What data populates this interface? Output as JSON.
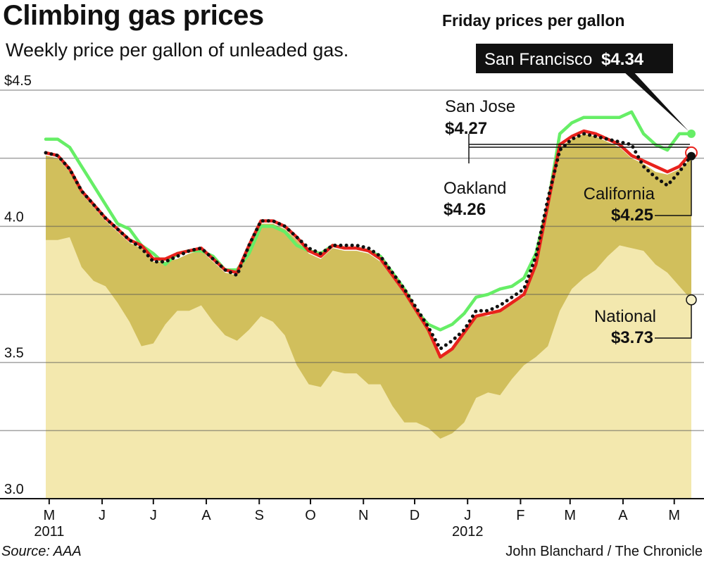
{
  "header": {
    "title": "Climbing gas prices",
    "subtitle": "Weekly price per gallon of unleaded gas.",
    "right_heading": "Friday prices per gallon"
  },
  "footer": {
    "source": "Source: AAA",
    "credit": "John Blanchard / The Chronicle"
  },
  "chart_data": {
    "type": "line",
    "title": "Climbing gas prices",
    "subtitle": "Weekly price per gallon of unleaded gas.",
    "xlabel": "",
    "ylabel": "",
    "ylim": [
      3.0,
      4.5
    ],
    "y_ticks": [
      {
        "value": 4.5,
        "label": "$4.5"
      },
      {
        "value": 4.0,
        "label": "4.0"
      },
      {
        "value": 3.5,
        "label": "3.5"
      },
      {
        "value": 3.0,
        "label": "3.0"
      }
    ],
    "gridlines": [
      3.25,
      3.5,
      3.75,
      4.0,
      4.25,
      4.5
    ],
    "grid": true,
    "x_ticks": [
      {
        "date": "2011-05-01",
        "label": "M",
        "year": "2011"
      },
      {
        "date": "2011-06-01",
        "label": "J"
      },
      {
        "date": "2011-07-01",
        "label": "J"
      },
      {
        "date": "2011-08-01",
        "label": "A"
      },
      {
        "date": "2011-09-01",
        "label": "S"
      },
      {
        "date": "2011-10-01",
        "label": "O"
      },
      {
        "date": "2011-11-01",
        "label": "N"
      },
      {
        "date": "2011-12-01",
        "label": "D"
      },
      {
        "date": "2012-01-01",
        "label": "J",
        "year": "2012"
      },
      {
        "date": "2012-02-01",
        "label": "F"
      },
      {
        "date": "2012-03-01",
        "label": "M"
      },
      {
        "date": "2012-04-01",
        "label": "A"
      },
      {
        "date": "2012-05-01",
        "label": "M"
      }
    ],
    "x": [
      "2011-04-29",
      "2011-05-06",
      "2011-05-13",
      "2011-05-20",
      "2011-05-27",
      "2011-06-03",
      "2011-06-10",
      "2011-06-17",
      "2011-06-24",
      "2011-07-01",
      "2011-07-08",
      "2011-07-15",
      "2011-07-22",
      "2011-07-29",
      "2011-08-05",
      "2011-08-12",
      "2011-08-19",
      "2011-08-26",
      "2011-09-02",
      "2011-09-09",
      "2011-09-16",
      "2011-09-23",
      "2011-09-30",
      "2011-10-07",
      "2011-10-14",
      "2011-10-21",
      "2011-10-28",
      "2011-11-04",
      "2011-11-11",
      "2011-11-18",
      "2011-11-25",
      "2011-12-02",
      "2011-12-09",
      "2011-12-16",
      "2011-12-23",
      "2011-12-30",
      "2012-01-06",
      "2012-01-13",
      "2012-01-20",
      "2012-01-27",
      "2012-02-03",
      "2012-02-10",
      "2012-02-17",
      "2012-02-24",
      "2012-03-02",
      "2012-03-09",
      "2012-03-16",
      "2012-03-23",
      "2012-03-30",
      "2012-04-06",
      "2012-04-13",
      "2012-04-20",
      "2012-04-27",
      "2012-05-04",
      "2012-05-11"
    ],
    "series": [
      {
        "name": "National",
        "kind": "area",
        "color": "#f3e8ae",
        "label_value": "$3.73",
        "values": [
          3.95,
          3.95,
          3.96,
          3.85,
          3.8,
          3.78,
          3.72,
          3.65,
          3.56,
          3.57,
          3.64,
          3.69,
          3.69,
          3.71,
          3.65,
          3.6,
          3.58,
          3.62,
          3.67,
          3.65,
          3.6,
          3.49,
          3.42,
          3.41,
          3.47,
          3.46,
          3.46,
          3.42,
          3.42,
          3.34,
          3.28,
          3.28,
          3.26,
          3.22,
          3.24,
          3.28,
          3.37,
          3.39,
          3.38,
          3.44,
          3.49,
          3.52,
          3.56,
          3.69,
          3.77,
          3.81,
          3.84,
          3.89,
          3.93,
          3.92,
          3.91,
          3.86,
          3.83,
          3.78,
          3.73
        ]
      },
      {
        "name": "California",
        "kind": "area",
        "color": "#d1bf5c",
        "label_value": "$4.25",
        "values": [
          4.26,
          4.25,
          4.2,
          4.12,
          4.07,
          4.02,
          3.98,
          3.94,
          3.92,
          3.87,
          3.87,
          3.88,
          3.9,
          3.91,
          3.87,
          3.83,
          3.82,
          3.92,
          4.01,
          4.01,
          3.99,
          3.95,
          3.9,
          3.88,
          3.92,
          3.91,
          3.91,
          3.9,
          3.87,
          3.81,
          3.75,
          3.68,
          3.61,
          3.52,
          3.55,
          3.6,
          3.67,
          3.67,
          3.69,
          3.72,
          3.74,
          3.85,
          4.07,
          4.29,
          4.32,
          4.34,
          4.33,
          4.31,
          4.29,
          4.25,
          4.23,
          4.2,
          4.19,
          4.21,
          4.25
        ]
      },
      {
        "name": "San Francisco",
        "kind": "line",
        "color": "#66ee66",
        "label_value": "$4.34",
        "values": [
          4.32,
          4.32,
          4.29,
          4.22,
          4.15,
          4.08,
          4.01,
          3.99,
          3.93,
          3.9,
          3.86,
          3.9,
          3.91,
          3.91,
          3.89,
          3.84,
          3.84,
          3.9,
          4.0,
          4.0,
          3.98,
          3.93,
          3.91,
          3.9,
          3.93,
          3.92,
          3.92,
          3.91,
          3.89,
          3.83,
          3.77,
          3.69,
          3.64,
          3.62,
          3.64,
          3.68,
          3.74,
          3.75,
          3.77,
          3.78,
          3.81,
          3.9,
          4.08,
          4.34,
          4.38,
          4.4,
          4.4,
          4.4,
          4.4,
          4.42,
          4.34,
          4.3,
          4.28,
          4.34,
          4.34
        ]
      },
      {
        "name": "San Jose",
        "kind": "line",
        "color": "#e8221c",
        "label_value": "$4.27",
        "values": [
          4.27,
          4.26,
          4.21,
          4.13,
          4.08,
          4.03,
          3.99,
          3.95,
          3.93,
          3.88,
          3.88,
          3.9,
          3.91,
          3.92,
          3.88,
          3.84,
          3.83,
          3.93,
          4.02,
          4.02,
          4.0,
          3.96,
          3.91,
          3.89,
          3.93,
          3.92,
          3.92,
          3.91,
          3.88,
          3.82,
          3.76,
          3.69,
          3.62,
          3.52,
          3.55,
          3.61,
          3.67,
          3.68,
          3.69,
          3.72,
          3.75,
          3.86,
          4.08,
          4.3,
          4.33,
          4.35,
          4.34,
          4.32,
          4.3,
          4.26,
          4.24,
          4.22,
          4.2,
          4.22,
          4.27
        ]
      },
      {
        "name": "Oakland",
        "kind": "dotted-line",
        "color": "#111111",
        "label_value": "$4.26",
        "values": [
          4.27,
          4.26,
          4.21,
          4.13,
          4.08,
          4.03,
          3.99,
          3.95,
          3.92,
          3.87,
          3.87,
          3.89,
          3.91,
          3.92,
          3.88,
          3.84,
          3.82,
          3.93,
          4.02,
          4.02,
          4.0,
          3.96,
          3.92,
          3.9,
          3.93,
          3.93,
          3.93,
          3.92,
          3.89,
          3.83,
          3.77,
          3.7,
          3.63,
          3.55,
          3.58,
          3.62,
          3.69,
          3.69,
          3.71,
          3.74,
          3.77,
          3.89,
          4.1,
          4.28,
          4.32,
          4.34,
          4.33,
          4.32,
          4.31,
          4.3,
          4.22,
          4.18,
          4.15,
          4.2,
          4.26
        ]
      }
    ],
    "annotations": {
      "sf_label": "San Francisco",
      "sf_value": "$4.34",
      "sj_label": "San Jose",
      "sj_value": "$4.27",
      "oak_label": "Oakland",
      "oak_value": "$4.26",
      "ca_label": "California",
      "ca_value": "$4.25",
      "nat_label": "National",
      "nat_value": "$3.73"
    },
    "legend": "direct labels"
  }
}
